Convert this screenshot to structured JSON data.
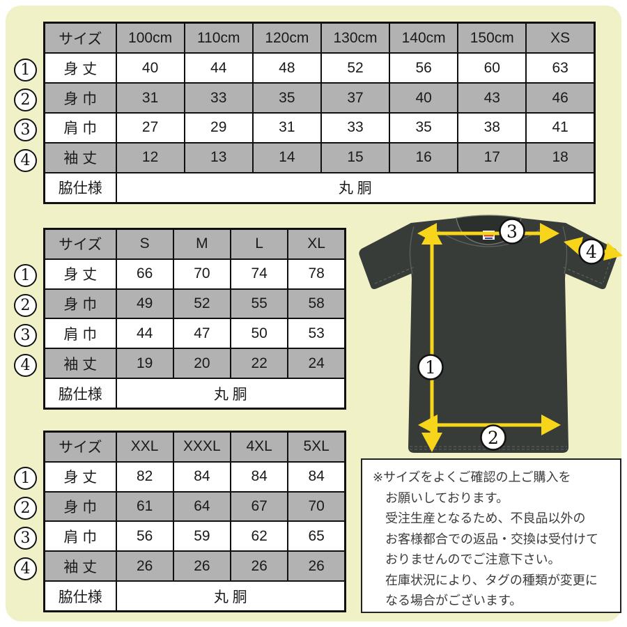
{
  "page": {
    "background_color": "#f0f1c6",
    "shirt_color": "#383c39",
    "arrow_color": "#f7d51b",
    "header_gray": "#b2b2b2"
  },
  "markers": [
    "1",
    "2",
    "3",
    "4"
  ],
  "tables": [
    {
      "name": "kids-xs",
      "header": [
        "サイズ",
        "100cm",
        "110cm",
        "120cm",
        "130cm",
        "140cm",
        "150cm",
        "XS"
      ],
      "rows": [
        {
          "label": "身 丈",
          "values": [
            "40",
            "44",
            "48",
            "52",
            "56",
            "60",
            "63"
          ]
        },
        {
          "label": "身 巾",
          "values": [
            "31",
            "33",
            "35",
            "37",
            "40",
            "43",
            "46"
          ]
        },
        {
          "label": "肩 巾",
          "values": [
            "27",
            "29",
            "31",
            "33",
            "35",
            "38",
            "41"
          ]
        },
        {
          "label": "袖 丈",
          "values": [
            "12",
            "13",
            "14",
            "15",
            "16",
            "17",
            "18"
          ]
        }
      ],
      "footer": {
        "label": "脇仕様",
        "value": "丸 胴"
      }
    },
    {
      "name": "s-xl",
      "header": [
        "サイズ",
        "S",
        "M",
        "L",
        "XL"
      ],
      "rows": [
        {
          "label": "身 丈",
          "values": [
            "66",
            "70",
            "74",
            "78"
          ]
        },
        {
          "label": "身 巾",
          "values": [
            "49",
            "52",
            "55",
            "58"
          ]
        },
        {
          "label": "肩 巾",
          "values": [
            "44",
            "47",
            "50",
            "53"
          ]
        },
        {
          "label": "袖 丈",
          "values": [
            "19",
            "20",
            "22",
            "24"
          ]
        }
      ],
      "footer": {
        "label": "脇仕様",
        "value": "丸 胴"
      }
    },
    {
      "name": "xxl-5xl",
      "header": [
        "サイズ",
        "XXL",
        "XXXL",
        "4XL",
        "5XL"
      ],
      "rows": [
        {
          "label": "身 丈",
          "values": [
            "82",
            "84",
            "84",
            "84"
          ]
        },
        {
          "label": "身 巾",
          "values": [
            "61",
            "64",
            "67",
            "70"
          ]
        },
        {
          "label": "肩 巾",
          "values": [
            "56",
            "59",
            "62",
            "65"
          ]
        },
        {
          "label": "袖 丈",
          "values": [
            "26",
            "26",
            "26",
            "26"
          ]
        }
      ],
      "footer": {
        "label": "脇仕様",
        "value": "丸 胴"
      }
    }
  ],
  "notice": {
    "lines": [
      "※サイズをよくご確認の上ご購入を",
      "お願いしております。",
      "受注生産となるため、不良品以外の",
      "お客様都合での返品・交換は受付けて",
      "おりませんのでご注意下さい。",
      "在庫状況により、タグの種類が変更に",
      "なる場合がございます。"
    ]
  }
}
